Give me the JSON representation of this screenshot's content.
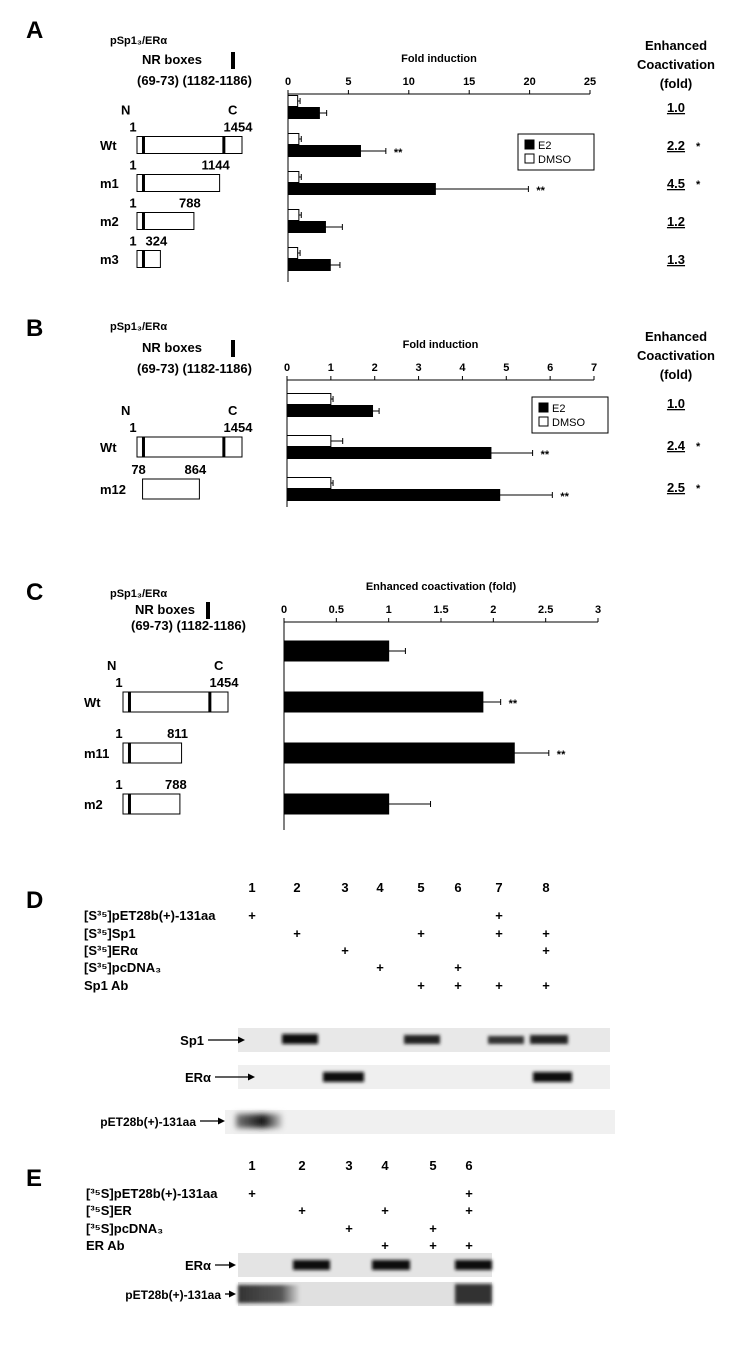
{
  "panels": [
    {
      "letter": "A",
      "construct": "pSp1₃/ERα",
      "nr_boxes": "NR boxes",
      "nr_positions": "(69-73) (1182-1186)",
      "constructs": [
        null,
        {
          "n": "N",
          "c": "C",
          "start": 1,
          "end": 1454
        },
        {
          "start": 1,
          "end": 1144
        },
        {
          "start": 1,
          "end": 788
        },
        {
          "start": 1,
          "end": 324
        }
      ],
      "coactivation": {
        "header": [
          "Enhanced",
          "Coactivation",
          "(fold)"
        ],
        "values": [
          "1.0",
          "2.2",
          "4.5",
          "1.2",
          "1.3"
        ],
        "marks": [
          null,
          "*",
          "*",
          null,
          null
        ]
      }
    },
    {
      "letter": "B",
      "construct": "pSp1₃/ERα",
      "nr_boxes": "NR boxes",
      "nr_positions": "(69-73) (1182-1186)",
      "constructs": [
        null,
        {
          "n": "N",
          "c": "C",
          "start": 1,
          "end": 1454
        },
        {
          "start": 78,
          "end": 864
        }
      ],
      "coactivation": {
        "header": [
          "Enhanced",
          "Coactivation",
          "(fold)"
        ],
        "values": [
          "1.0",
          "2.4",
          "2.5"
        ],
        "marks": [
          null,
          "*",
          "*"
        ]
      }
    },
    {
      "letter": "C",
      "construct": "pSp1₃/ERα",
      "nr_boxes": "NR boxes",
      "nr_positions": "(69-73) (1182-1186)",
      "constructs": [
        null,
        {
          "n": "N",
          "c": "C",
          "start": 1,
          "end": 1454
        },
        {
          "start": 1,
          "end": 811
        },
        {
          "start": 1,
          "end": 788
        }
      ]
    }
  ],
  "chart_data": [
    {
      "type": "bar",
      "orientation": "horizontal",
      "title": "Fold induction",
      "categories": [
        null,
        "Wt",
        "m1",
        "m2",
        "m3"
      ],
      "series": [
        {
          "name": "E2",
          "color": "#000000",
          "values": [
            2.6,
            6.0,
            12.2,
            3.1,
            3.5
          ],
          "errors": [
            0.6,
            2.1,
            7.7,
            1.4,
            0.8
          ]
        },
        {
          "name": "DMSO",
          "color": "#ffffff",
          "values": [
            0.8,
            0.9,
            0.9,
            0.9,
            0.8
          ],
          "errors": [
            0.2,
            0.2,
            0.2,
            0.2,
            0.2
          ]
        }
      ],
      "significance": [
        null,
        "**",
        "**",
        null,
        null
      ],
      "xlim": [
        0,
        25
      ],
      "xticks": [
        0,
        5,
        10,
        15,
        20,
        25
      ],
      "legend": "upper right"
    },
    {
      "type": "bar",
      "orientation": "horizontal",
      "title": "Fold induction",
      "categories": [
        null,
        "Wt",
        "m12"
      ],
      "series": [
        {
          "name": "E2",
          "color": "#000000",
          "values": [
            1.95,
            4.65,
            4.85
          ],
          "errors": [
            0.15,
            0.95,
            1.2
          ]
        },
        {
          "name": "DMSO",
          "color": "#ffffff",
          "values": [
            1.0,
            1.0,
            1.0
          ],
          "errors": [
            0.05,
            0.27,
            0.05
          ]
        }
      ],
      "significance": [
        null,
        "**",
        "**"
      ],
      "xlim": [
        0,
        7
      ],
      "xticks": [
        0,
        1,
        2,
        3,
        4,
        5,
        6,
        7
      ],
      "legend": "upper right"
    },
    {
      "type": "bar",
      "orientation": "horizontal",
      "title": "Enhanced coactivation (fold)",
      "categories": [
        null,
        "Wt",
        "m11",
        "m2"
      ],
      "series": [
        {
          "color": "#000000",
          "values": [
            1.0,
            1.9,
            2.2,
            1.0
          ],
          "errors": [
            0.16,
            0.17,
            0.33,
            0.4
          ]
        }
      ],
      "significance": [
        null,
        "**",
        "**",
        null
      ],
      "xlim": [
        0,
        3
      ],
      "xticks": [
        0,
        0.5,
        1,
        1.5,
        2,
        2.5,
        3
      ]
    }
  ],
  "gels": [
    {
      "letter": "D",
      "lanes": [
        1,
        2,
        3,
        4,
        5,
        6,
        7,
        8
      ],
      "rows": [
        {
          "label": "[S³⁵]pET28b(+)-131aa",
          "cells": [
            "+",
            null,
            null,
            null,
            null,
            null,
            "+",
            null
          ]
        },
        {
          "label": "[S³⁵]Sp1",
          "cells": [
            null,
            "+",
            null,
            null,
            "+",
            null,
            "+",
            "+"
          ]
        },
        {
          "label": "[S³⁵]ERα",
          "cells": [
            null,
            null,
            "+",
            null,
            null,
            null,
            null,
            "+"
          ]
        },
        {
          "label": "[S³⁵]pcDNA₃",
          "cells": [
            null,
            null,
            null,
            "+",
            null,
            "+",
            null,
            null
          ]
        },
        {
          "label": "Sp1 Ab",
          "cells": [
            null,
            null,
            null,
            null,
            "+",
            "+",
            "+",
            "+"
          ]
        }
      ],
      "bands": [
        "Sp1",
        "ERα",
        "pET28b(+)-131aa"
      ]
    },
    {
      "letter": "E",
      "lanes": [
        1,
        2,
        3,
        4,
        5,
        6
      ],
      "rows": [
        {
          "label": "[³⁵S]pET28b(+)-131aa",
          "cells": [
            "+",
            null,
            null,
            null,
            null,
            "+"
          ]
        },
        {
          "label": "[³⁵S]ER",
          "cells": [
            null,
            "+",
            null,
            "+",
            null,
            "+"
          ]
        },
        {
          "label": "[³⁵S]pcDNA₃",
          "cells": [
            null,
            null,
            "+",
            null,
            "+",
            null
          ]
        },
        {
          "label": "ER Ab",
          "cells": [
            null,
            null,
            null,
            "+",
            "+",
            "+"
          ]
        }
      ],
      "bands": [
        "ERα",
        "pET28b(+)-131aa"
      ]
    }
  ]
}
